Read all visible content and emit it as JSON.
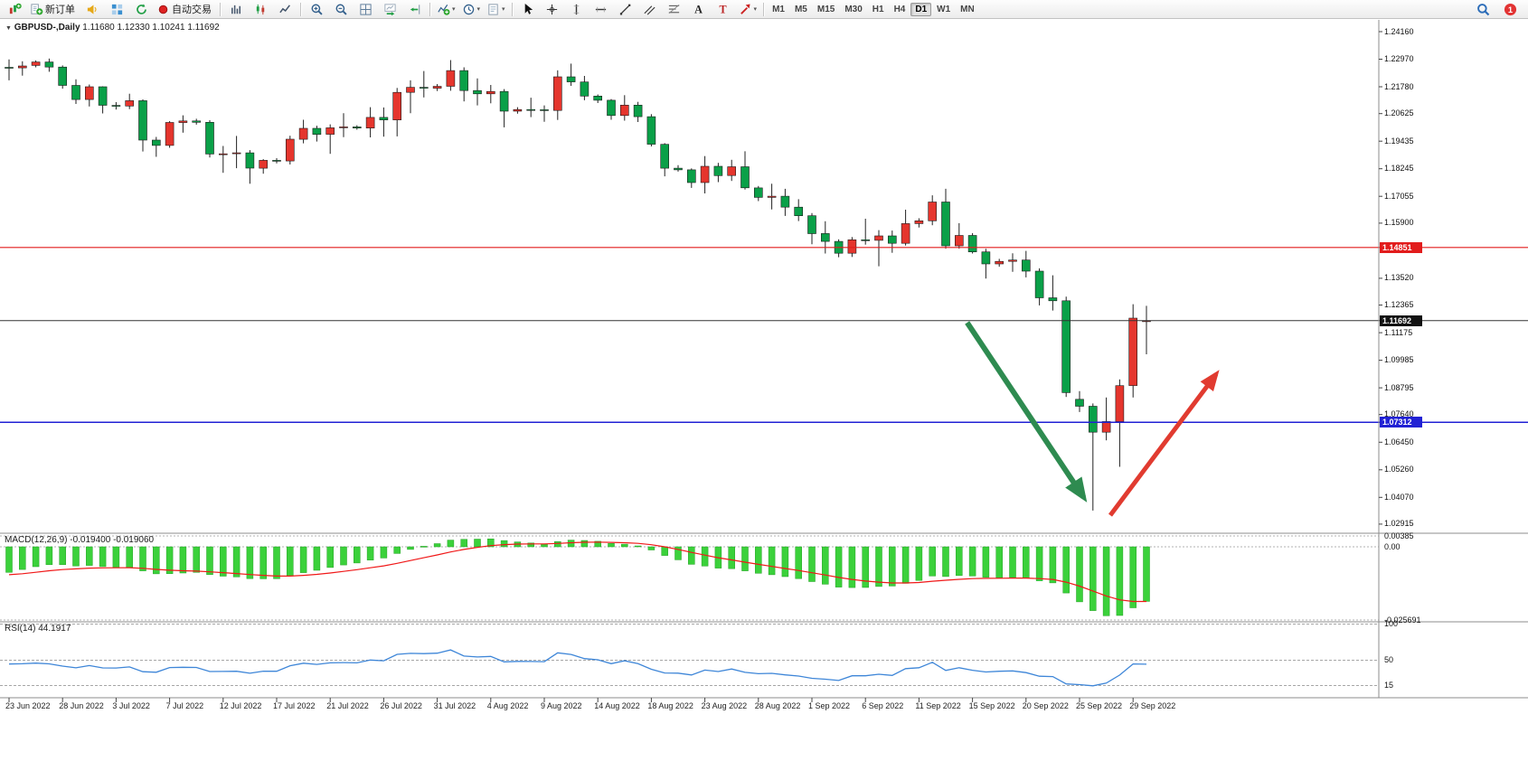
{
  "toolbar": {
    "groups": [
      [
        {
          "name": "new-chart",
          "icon": "chart-candles"
        },
        {
          "name": "new-order",
          "icon": "new-order",
          "label": "新订单"
        },
        {
          "name": "alerts-sound",
          "icon": "horn"
        },
        {
          "name": "market-depth",
          "icon": "depth"
        },
        {
          "name": "strategy-refresh",
          "icon": "refresh"
        },
        {
          "name": "autotrading",
          "icon": "autotrade",
          "label": "自动交易"
        }
      ],
      [
        {
          "name": "bar-chart",
          "icon": "bars"
        },
        {
          "name": "candlestick-chart",
          "icon": "candles"
        },
        {
          "name": "line-chart",
          "icon": "linechart"
        }
      ],
      [
        {
          "name": "zoom-in",
          "icon": "zoom-in"
        },
        {
          "name": "zoom-out",
          "icon": "zoom-out"
        },
        {
          "name": "tile-windows",
          "icon": "tile"
        },
        {
          "name": "auto-scroll",
          "icon": "autoscroll"
        },
        {
          "name": "chart-shift",
          "icon": "shift"
        }
      ],
      [
        {
          "name": "indicators",
          "icon": "indicators",
          "caret": true
        },
        {
          "name": "periods",
          "icon": "clock",
          "caret": true
        },
        {
          "name": "templates",
          "icon": "template",
          "caret": true
        }
      ],
      [
        {
          "name": "cursor",
          "icon": "cursor"
        },
        {
          "name": "crosshair",
          "icon": "crosshair"
        },
        {
          "name": "vertical-line",
          "icon": "vline"
        },
        {
          "name": "horizontal-line",
          "icon": "hline"
        },
        {
          "name": "trendline",
          "icon": "trend"
        },
        {
          "name": "equidistant-channel",
          "icon": "channel"
        },
        {
          "name": "fibonacci-retracement",
          "icon": "fibo"
        },
        {
          "name": "text",
          "icon": "text-a"
        },
        {
          "name": "text-label",
          "icon": "text-t"
        },
        {
          "name": "arrow-objects",
          "icon": "arrow-tool",
          "caret": true
        }
      ]
    ],
    "timeframes": [
      "M1",
      "M5",
      "M15",
      "M30",
      "H1",
      "H4",
      "D1",
      "W1",
      "MN"
    ],
    "active_timeframe": "D1",
    "right_icons": [
      {
        "name": "search",
        "icon": "magnifier"
      },
      {
        "name": "notification",
        "icon": "badge",
        "label": "1"
      }
    ]
  },
  "chart": {
    "caret": "▼",
    "symbol_period": "GBPUSD-,Daily",
    "ohlc_text": "1.11680 1.12330 1.10241 1.11692"
  },
  "macd": {
    "label": "MACD(12,26,9)",
    "values": "-0.019400 -0.019060",
    "axis": [
      "0.00385",
      "0.00",
      "-0.025691"
    ]
  },
  "rsi": {
    "label": "RSI(14)",
    "value": "44.1917",
    "axis": [
      "100",
      "50",
      "15"
    ]
  },
  "price_axis": {
    "labels": [
      "1.24160",
      "1.22970",
      "1.21780",
      "1.20625",
      "1.19435",
      "1.18245",
      "1.17055",
      "1.15900",
      "1.13520",
      "1.12365",
      "1.11175",
      "1.09985",
      "1.08795",
      "1.07640",
      "1.06450",
      "1.05260",
      "1.04070",
      "1.02915"
    ],
    "badges": [
      {
        "value": "1.14851",
        "price": 1.14851,
        "color": "#e21c1c"
      },
      {
        "value": "1.11692",
        "price": 1.11692,
        "color": "#111111"
      },
      {
        "value": "1.07312",
        "price": 1.07312,
        "color": "#2121d4"
      }
    ]
  },
  "time_axis": {
    "labels": [
      "23 Jun 2022",
      "28 Jun 2022",
      "3 Jul 2022",
      "7 Jul 2022",
      "12 Jul 2022",
      "17 Jul 2022",
      "21 Jul 2022",
      "26 Jul 2022",
      "31 Jul 2022",
      "4 Aug 2022",
      "9 Aug 2022",
      "14 Aug 2022",
      "18 Aug 2022",
      "23 Aug 2022",
      "28 Aug 2022",
      "1 Sep 2022",
      "6 Sep 2022",
      "11 Sep 2022",
      "15 Sep 2022",
      "20 Sep 2022",
      "25 Sep 2022",
      "29 Sep 2022"
    ],
    "bars_per_label": 4
  },
  "chart_data": {
    "type": "candlestick",
    "symbol": "GBPUSD-",
    "period": "Daily",
    "current_bar": {
      "open": 1.1168,
      "high": 1.1233,
      "low": 1.10241,
      "close": 1.11692
    },
    "price_range": {
      "top": 1.2416,
      "bottom": 1.02915
    },
    "colors": {
      "bull": "#e5352d",
      "bear": "#0aa048",
      "wick": "#222222",
      "macd_hist": "#3bd13b",
      "macd_signal": "#f01818",
      "rsi": "#3e86d8"
    },
    "levels": [
      {
        "name": "resistance-line",
        "price": 1.14851,
        "color": "#e21c1c",
        "width": 1.2
      },
      {
        "name": "current-price-line",
        "price": 1.11692,
        "color": "#333333",
        "width": 1
      },
      {
        "name": "support-line",
        "price": 1.07312,
        "color": "#2121d4",
        "width": 1.5
      }
    ],
    "annotations": {
      "arrows": [
        {
          "name": "bearish-arrow",
          "from": [
            71.6,
            1.1161
          ],
          "to": [
            80.3,
            1.0408
          ],
          "color": "#2e8b50",
          "width": 6
        },
        {
          "name": "bullish-arrow",
          "from": [
            82.3,
            1.033
          ],
          "to": [
            90.2,
            1.0938
          ],
          "color": "#e13b30",
          "width": 5
        }
      ]
    },
    "indicators": {
      "macd": {
        "fast": 12,
        "slow": 26,
        "signal": 9,
        "value": -0.0194,
        "signal_value": -0.01906,
        "scale": {
          "top": 0.00385,
          "bottom": -0.025691
        }
      },
      "rsi": {
        "period": 14,
        "value": 44.1917,
        "levels": [
          100,
          50,
          15
        ]
      }
    },
    "bars": [
      [
        "2022.06.23",
        1.2262,
        1.2296,
        1.2206,
        1.226
      ],
      [
        "2022.06.24",
        1.226,
        1.2288,
        1.2226,
        1.2268
      ],
      [
        "2022.06.26",
        1.227,
        1.2292,
        1.2262,
        1.2285
      ],
      [
        "2022.06.27",
        1.2285,
        1.23,
        1.2243,
        1.2263
      ],
      [
        "2022.06.28",
        1.2263,
        1.227,
        1.217,
        1.2184
      ],
      [
        "2022.06.29",
        1.2184,
        1.221,
        1.2104,
        1.2123
      ],
      [
        "2022.06.30",
        1.2123,
        1.2188,
        1.2093,
        1.2178
      ],
      [
        "2022.07.01",
        1.2178,
        1.218,
        1.2063,
        1.2098
      ],
      [
        "2022.07.03",
        1.2098,
        1.2112,
        1.208,
        1.2095
      ],
      [
        "2022.07.04",
        1.2095,
        1.2148,
        1.2082,
        1.2118
      ],
      [
        "2022.07.05",
        1.2118,
        1.2124,
        1.1899,
        1.1948
      ],
      [
        "2022.07.06",
        1.1948,
        1.1962,
        1.1876,
        1.1925
      ],
      [
        "2022.07.07",
        1.1925,
        1.203,
        1.1915,
        1.2024
      ],
      [
        "2022.07.08",
        1.2024,
        1.2055,
        1.198,
        1.2031
      ],
      [
        "2022.07.10",
        1.2031,
        1.204,
        1.2015,
        1.2025
      ],
      [
        "2022.07.11",
        1.2025,
        1.2034,
        1.1873,
        1.1888
      ],
      [
        "2022.07.12",
        1.1888,
        1.1923,
        1.1807,
        1.1889
      ],
      [
        "2022.07.13",
        1.1889,
        1.1966,
        1.1827,
        1.1893
      ],
      [
        "2022.07.14",
        1.1893,
        1.1905,
        1.176,
        1.1827
      ],
      [
        "2022.07.15",
        1.1827,
        1.1866,
        1.1803,
        1.1861
      ],
      [
        "2022.07.17",
        1.1861,
        1.187,
        1.1848,
        1.1858
      ],
      [
        "2022.07.18",
        1.1858,
        1.1967,
        1.1843,
        1.1952
      ],
      [
        "2022.07.19",
        1.1952,
        1.2036,
        1.1934,
        1.1999
      ],
      [
        "2022.07.20",
        1.1999,
        1.201,
        1.1942,
        1.1973
      ],
      [
        "2022.07.21",
        1.1973,
        1.2016,
        1.1889,
        1.2001
      ],
      [
        "2022.07.22",
        1.2001,
        1.2064,
        1.1961,
        1.2005
      ],
      [
        "2022.07.24",
        1.2005,
        1.2012,
        1.1993,
        1.2
      ],
      [
        "2022.07.25",
        1.2,
        1.209,
        1.196,
        1.2046
      ],
      [
        "2022.07.26",
        1.2046,
        1.2089,
        1.1963,
        1.2035
      ],
      [
        "2022.07.27",
        1.2035,
        1.2173,
        1.1964,
        1.2154
      ],
      [
        "2022.07.28",
        1.2154,
        1.2206,
        1.2064,
        1.2176
      ],
      [
        "2022.07.29",
        1.2176,
        1.2246,
        1.2132,
        1.2172
      ],
      [
        "2022.07.31",
        1.2172,
        1.219,
        1.216,
        1.218
      ],
      [
        "2022.08.01",
        1.218,
        1.2293,
        1.2161,
        1.2248
      ],
      [
        "2022.08.02",
        1.2248,
        1.2262,
        1.2115,
        1.2162
      ],
      [
        "2022.08.03",
        1.2162,
        1.2214,
        1.2098,
        1.2148
      ],
      [
        "2022.08.04",
        1.2148,
        1.2186,
        1.2107,
        1.2158
      ],
      [
        "2022.08.05",
        1.2158,
        1.2168,
        1.2003,
        1.2073
      ],
      [
        "2022.08.07",
        1.2073,
        1.209,
        1.2062,
        1.208
      ],
      [
        "2022.08.08",
        1.208,
        1.2131,
        1.2047,
        1.2079
      ],
      [
        "2022.08.09",
        1.2079,
        1.2098,
        1.2027,
        1.2076
      ],
      [
        "2022.08.10",
        1.2076,
        1.2249,
        1.2035,
        1.2221
      ],
      [
        "2022.08.11",
        1.2221,
        1.2278,
        1.2182,
        1.2199
      ],
      [
        "2022.08.12",
        1.2199,
        1.2225,
        1.212,
        1.2138
      ],
      [
        "2022.08.14",
        1.2138,
        1.2145,
        1.2108,
        1.212
      ],
      [
        "2022.08.15",
        1.212,
        1.2125,
        1.2036,
        1.2054
      ],
      [
        "2022.08.16",
        1.2054,
        1.2142,
        1.2032,
        1.2099
      ],
      [
        "2022.08.17",
        1.2099,
        1.2113,
        1.2026,
        1.2049
      ],
      [
        "2022.08.18",
        1.2049,
        1.206,
        1.1921,
        1.193
      ],
      [
        "2022.08.19",
        1.193,
        1.1935,
        1.1792,
        1.1827
      ],
      [
        "2022.08.21",
        1.1827,
        1.184,
        1.1812,
        1.182
      ],
      [
        "2022.08.22",
        1.182,
        1.1826,
        1.1742,
        1.1765
      ],
      [
        "2022.08.23",
        1.1765,
        1.1879,
        1.1718,
        1.1835
      ],
      [
        "2022.08.24",
        1.1835,
        1.185,
        1.1767,
        1.1795
      ],
      [
        "2022.08.25",
        1.1795,
        1.1863,
        1.1772,
        1.1833
      ],
      [
        "2022.08.26",
        1.1833,
        1.19,
        1.1735,
        1.1742
      ],
      [
        "2022.08.28",
        1.1742,
        1.175,
        1.1685,
        1.1701
      ],
      [
        "2022.08.29",
        1.1701,
        1.176,
        1.1649,
        1.1706
      ],
      [
        "2022.08.30",
        1.1706,
        1.1738,
        1.1621,
        1.1659
      ],
      [
        "2022.08.31",
        1.1659,
        1.1693,
        1.1599,
        1.1622
      ],
      [
        "2022.09.01",
        1.1622,
        1.1633,
        1.1499,
        1.1545
      ],
      [
        "2022.09.02",
        1.1545,
        1.1598,
        1.1459,
        1.1511
      ],
      [
        "2022.09.04",
        1.1511,
        1.152,
        1.1443,
        1.146
      ],
      [
        "2022.09.05",
        1.146,
        1.153,
        1.1444,
        1.1518
      ],
      [
        "2022.09.06",
        1.1518,
        1.1609,
        1.1497,
        1.1516
      ],
      [
        "2022.09.07",
        1.1516,
        1.156,
        1.1404,
        1.1535
      ],
      [
        "2022.09.08",
        1.1535,
        1.1558,
        1.1462,
        1.1503
      ],
      [
        "2022.09.09",
        1.1503,
        1.1648,
        1.1493,
        1.1588
      ],
      [
        "2022.09.11",
        1.1588,
        1.1611,
        1.1571,
        1.16
      ],
      [
        "2022.09.12",
        1.16,
        1.171,
        1.1581,
        1.1681
      ],
      [
        "2022.09.13",
        1.1681,
        1.1738,
        1.148,
        1.1492
      ],
      [
        "2022.09.14",
        1.1492,
        1.159,
        1.148,
        1.1537
      ],
      [
        "2022.09.15",
        1.1537,
        1.1547,
        1.1459,
        1.1466
      ],
      [
        "2022.09.16",
        1.1466,
        1.1479,
        1.1351,
        1.1414
      ],
      [
        "2022.09.18",
        1.1414,
        1.1436,
        1.1402,
        1.1425
      ],
      [
        "2022.09.19",
        1.1425,
        1.146,
        1.138,
        1.1431
      ],
      [
        "2022.09.20",
        1.1431,
        1.147,
        1.1356,
        1.1383
      ],
      [
        "2022.09.21",
        1.1383,
        1.1395,
        1.1235,
        1.1268
      ],
      [
        "2022.09.22",
        1.1268,
        1.1365,
        1.1213,
        1.1255
      ],
      [
        "2022.09.23",
        1.1255,
        1.1273,
        1.084,
        1.0859
      ],
      [
        "2022.09.25",
        1.083,
        1.0865,
        1.0775,
        1.08
      ],
      [
        "2022.09.26",
        1.08,
        1.0812,
        1.035,
        1.0688
      ],
      [
        "2022.09.27",
        1.0688,
        1.0838,
        1.0653,
        1.0734
      ],
      [
        "2022.09.28",
        1.0734,
        1.0916,
        1.0539,
        1.0889
      ],
      [
        "2022.09.29",
        1.0889,
        1.124,
        1.0838,
        1.118
      ],
      [
        "2022.09.30",
        1.1168,
        1.1233,
        1.1024,
        1.1169
      ]
    ]
  }
}
